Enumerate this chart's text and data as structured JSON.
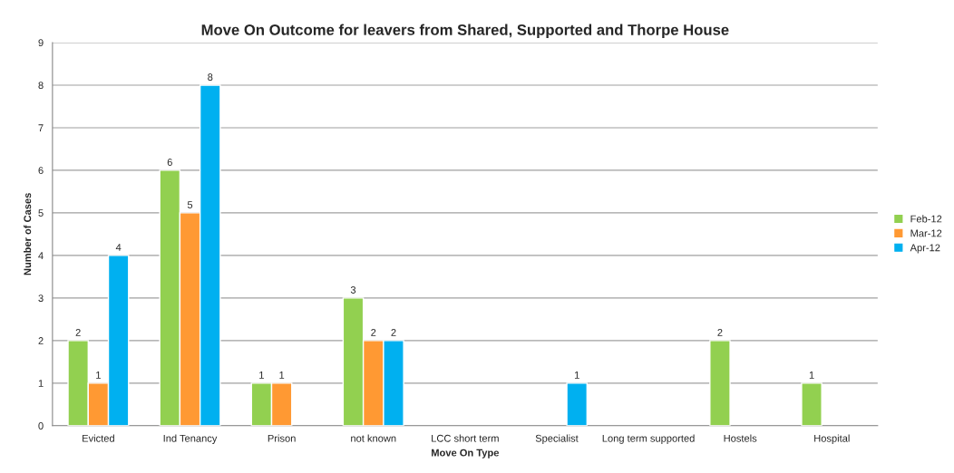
{
  "chart_data": {
    "type": "bar",
    "title": "Move On Outcome for leavers from Shared, Supported and Thorpe House",
    "xlabel": "Move On Type",
    "ylabel": "Number of Cases",
    "categories": [
      "Evicted",
      "Ind Tenancy",
      "Prison",
      "not known",
      "LCC short term",
      "Specialist",
      "Long term supported",
      "Hostels",
      "Hospital"
    ],
    "series": [
      {
        "name": "Feb-12",
        "color": "#92d050",
        "values": [
          2,
          6,
          1,
          3,
          null,
          null,
          null,
          2,
          1
        ]
      },
      {
        "name": "Mar-12",
        "color": "#ff9933",
        "values": [
          1,
          5,
          1,
          2,
          null,
          null,
          null,
          null,
          null
        ]
      },
      {
        "name": "Apr-12",
        "color": "#00b0f0",
        "values": [
          4,
          8,
          null,
          2,
          null,
          1,
          null,
          null,
          null
        ]
      }
    ],
    "ylim": [
      0,
      9
    ],
    "yticks": [
      0,
      1,
      2,
      3,
      4,
      5,
      6,
      7,
      8,
      9
    ],
    "grid": "y",
    "legend": "right",
    "data_labels": true
  }
}
